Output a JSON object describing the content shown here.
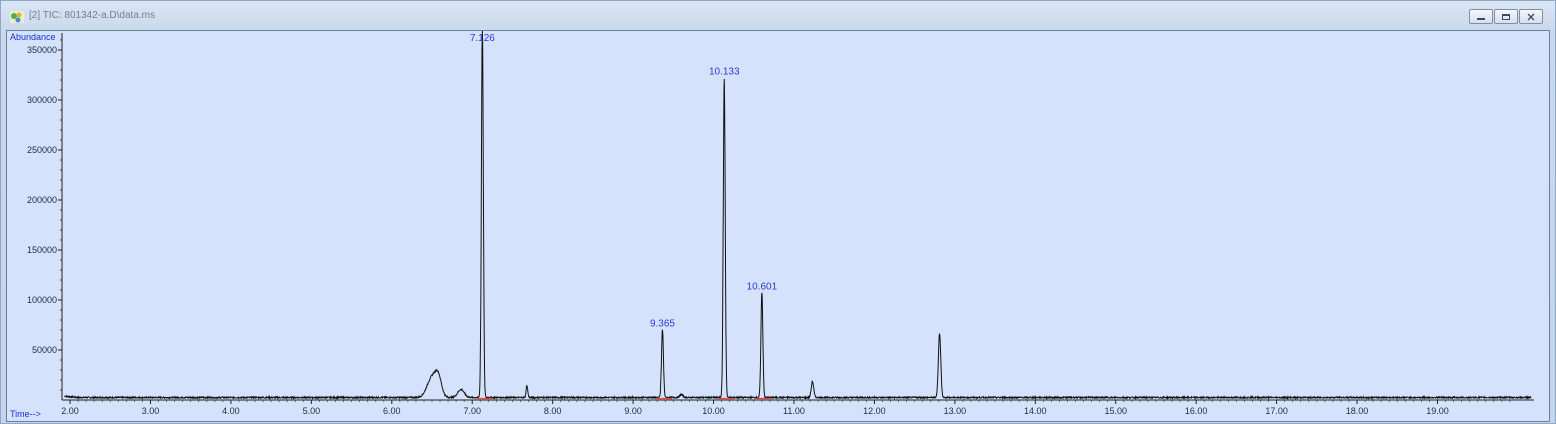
{
  "window": {
    "title": "[2] TIC: 801342-a.D\\data.ms",
    "icon": "chromatogram-app-icon",
    "controls": [
      "minimize-icon",
      "restore-icon",
      "close-icon"
    ]
  },
  "chart_data": {
    "type": "line",
    "title": "",
    "xlabel": "Time-->",
    "ylabel": "Abundance",
    "xlim": [
      1.9,
      20.2
    ],
    "ylim": [
      0,
      365000
    ],
    "x_ticks": [
      "2.00",
      "3.00",
      "4.00",
      "5.00",
      "6.00",
      "7.00",
      "8.00",
      "9.00",
      "10.00",
      "11.00",
      "12.00",
      "13.00",
      "14.00",
      "15.00",
      "16.00",
      "17.00",
      "18.00",
      "19.00"
    ],
    "y_ticks": [
      "50000",
      "100000",
      "150000",
      "200000",
      "250000",
      "300000",
      "350000"
    ],
    "grid": false,
    "line_color": "#111111",
    "baseline_marker_color": "#ff3b3b",
    "baseline": 2500,
    "peaks": [
      {
        "rt": 6.5,
        "height": 20000,
        "width": 0.06
      },
      {
        "rt": 6.58,
        "height": 17000,
        "width": 0.04
      },
      {
        "rt": 6.86,
        "height": 8000,
        "width": 0.04
      },
      {
        "rt": 7.126,
        "height": 370000,
        "width": 0.012
      },
      {
        "rt": 7.68,
        "height": 12000,
        "width": 0.01
      },
      {
        "rt": 9.365,
        "height": 68000,
        "width": 0.012
      },
      {
        "rt": 9.6,
        "height": 3000,
        "width": 0.02
      },
      {
        "rt": 10.133,
        "height": 320000,
        "width": 0.012
      },
      {
        "rt": 10.601,
        "height": 105000,
        "width": 0.012
      },
      {
        "rt": 11.23,
        "height": 16000,
        "width": 0.015
      },
      {
        "rt": 12.81,
        "height": 64000,
        "width": 0.015
      }
    ],
    "peak_labels": [
      {
        "rt": 7.126,
        "text": "7.126"
      },
      {
        "rt": 9.365,
        "text": "9.365"
      },
      {
        "rt": 10.133,
        "text": "10.133"
      },
      {
        "rt": 10.601,
        "text": "10.601"
      }
    ]
  }
}
